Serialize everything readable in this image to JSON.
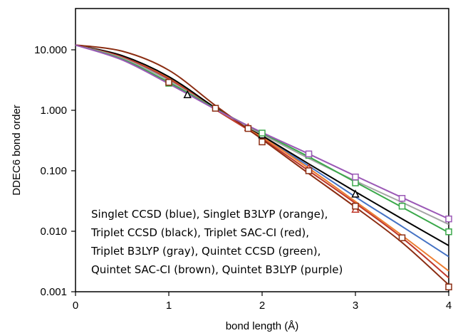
{
  "chart_data": {
    "type": "line",
    "title": "",
    "xlabel": "bond length (Å)",
    "ylabel": "DDEC6 bond order",
    "xlim": [
      0,
      4
    ],
    "ylim": [
      0.001,
      20
    ],
    "y_scale": "log",
    "grid": false,
    "x_ticks": [
      "0",
      "1",
      "2",
      "3",
      "4"
    ],
    "y_ticks": [
      {
        "value": 0.001,
        "label": "0.001"
      },
      {
        "value": 0.01,
        "label": "0.010"
      },
      {
        "value": 0.1,
        "label": "0.100"
      },
      {
        "value": 1,
        "label": "1.000"
      },
      {
        "value": 10,
        "label": "10.000"
      }
    ],
    "annotation_lines": [
      "Singlet CCSD (blue), Singlet B3LYP (orange),",
      "Triplet CCSD (black), Triplet SAC-CI (red),",
      "Triplet B3LYP (gray), Quintet CCSD (green),",
      "Quintet SAC-CI (brown), Quintet B3LYP (purple)"
    ],
    "series": [
      {
        "color": "#4472c4",
        "marker": "none",
        "points": [
          [
            0,
            12
          ],
          [
            0.5,
            7.2
          ],
          [
            1,
            3.2
          ],
          [
            1.5,
            1.05
          ],
          [
            2,
            0.36
          ],
          [
            2.5,
            0.12
          ],
          [
            3,
            0.037
          ],
          [
            3.5,
            0.012
          ],
          [
            4,
            0.0038
          ]
        ]
      },
      {
        "color": "#ed7d31",
        "marker": "none",
        "points": [
          [
            0,
            12
          ],
          [
            0.5,
            7.6
          ],
          [
            1,
            3.4
          ],
          [
            1.5,
            1.06
          ],
          [
            2,
            0.36
          ],
          [
            2.5,
            0.11
          ],
          [
            3,
            0.031
          ],
          [
            3.5,
            0.0085
          ],
          [
            4,
            0.0022
          ]
        ]
      },
      {
        "color": "#000000",
        "marker": "triangle",
        "points": [
          [
            0,
            12
          ],
          [
            0.5,
            8
          ],
          [
            1,
            3.6
          ],
          [
            1.5,
            1.1
          ],
          [
            2,
            0.38
          ],
          [
            2.5,
            0.13
          ],
          [
            3,
            0.045
          ],
          [
            3.5,
            0.016
          ],
          [
            4,
            0.0058
          ]
        ],
        "markers_at": [
          [
            1.2,
            1.8
          ],
          [
            2,
            0.39
          ],
          [
            3,
            0.041
          ]
        ]
      },
      {
        "color": "#c0392b",
        "marker": "triangle",
        "points": [
          [
            0,
            12
          ],
          [
            0.5,
            7.6
          ],
          [
            1,
            3.3
          ],
          [
            1.5,
            1.03
          ],
          [
            2,
            0.34
          ],
          [
            2.5,
            0.1
          ],
          [
            3,
            0.029
          ],
          [
            3.5,
            0.0078
          ],
          [
            4,
            0.0017
          ]
        ],
        "markers_at": [
          [
            1.85,
            0.52
          ],
          [
            2.5,
            0.11
          ],
          [
            3,
            0.023
          ]
        ]
      },
      {
        "color": "#a5a5a5",
        "marker": "none",
        "points": [
          [
            0,
            12
          ],
          [
            0.5,
            7.3
          ],
          [
            1,
            3.1
          ],
          [
            1.5,
            1.05
          ],
          [
            2,
            0.4
          ],
          [
            2.5,
            0.16
          ],
          [
            3,
            0.068
          ],
          [
            3.5,
            0.03
          ],
          [
            4,
            0.013
          ]
        ]
      },
      {
        "color": "#3aa84a",
        "marker": "square",
        "points": [
          [
            0,
            12
          ],
          [
            0.5,
            7
          ],
          [
            1,
            2.9
          ],
          [
            1.5,
            1.06
          ],
          [
            2,
            0.42
          ],
          [
            2.5,
            0.17
          ],
          [
            3,
            0.065
          ],
          [
            3.5,
            0.025
          ],
          [
            4,
            0.0095
          ]
        ],
        "markers_at": [
          [
            1,
            2.8
          ],
          [
            2,
            0.42
          ],
          [
            2.5,
            0.18
          ],
          [
            3,
            0.063
          ],
          [
            3.5,
            0.026
          ],
          [
            4,
            0.0098
          ]
        ]
      },
      {
        "color": "#8b2d12",
        "marker": "square",
        "points": [
          [
            0,
            12
          ],
          [
            0.5,
            9.5
          ],
          [
            1,
            4.6
          ],
          [
            1.5,
            1.2
          ],
          [
            2,
            0.33
          ],
          [
            2.5,
            0.09
          ],
          [
            3,
            0.025
          ],
          [
            3.5,
            0.0065
          ],
          [
            4,
            0.0013
          ]
        ],
        "markers_at": [
          [
            1,
            2.9
          ],
          [
            1.5,
            1.08
          ],
          [
            1.85,
            0.5
          ],
          [
            2,
            0.3
          ],
          [
            2.5,
            0.1
          ],
          [
            3,
            0.026
          ],
          [
            3.5,
            0.0078
          ],
          [
            4,
            0.0012
          ]
        ]
      },
      {
        "color": "#9b59b6",
        "marker": "square",
        "points": [
          [
            0,
            12
          ],
          [
            0.5,
            6.8
          ],
          [
            1,
            2.75
          ],
          [
            1.5,
            1.04
          ],
          [
            2,
            0.43
          ],
          [
            2.5,
            0.19
          ],
          [
            3,
            0.082
          ],
          [
            3.5,
            0.036
          ],
          [
            4,
            0.016
          ]
        ],
        "markers_at": [
          [
            2.5,
            0.19
          ],
          [
            3,
            0.079
          ],
          [
            3.5,
            0.035
          ],
          [
            4,
            0.016
          ]
        ]
      }
    ]
  }
}
